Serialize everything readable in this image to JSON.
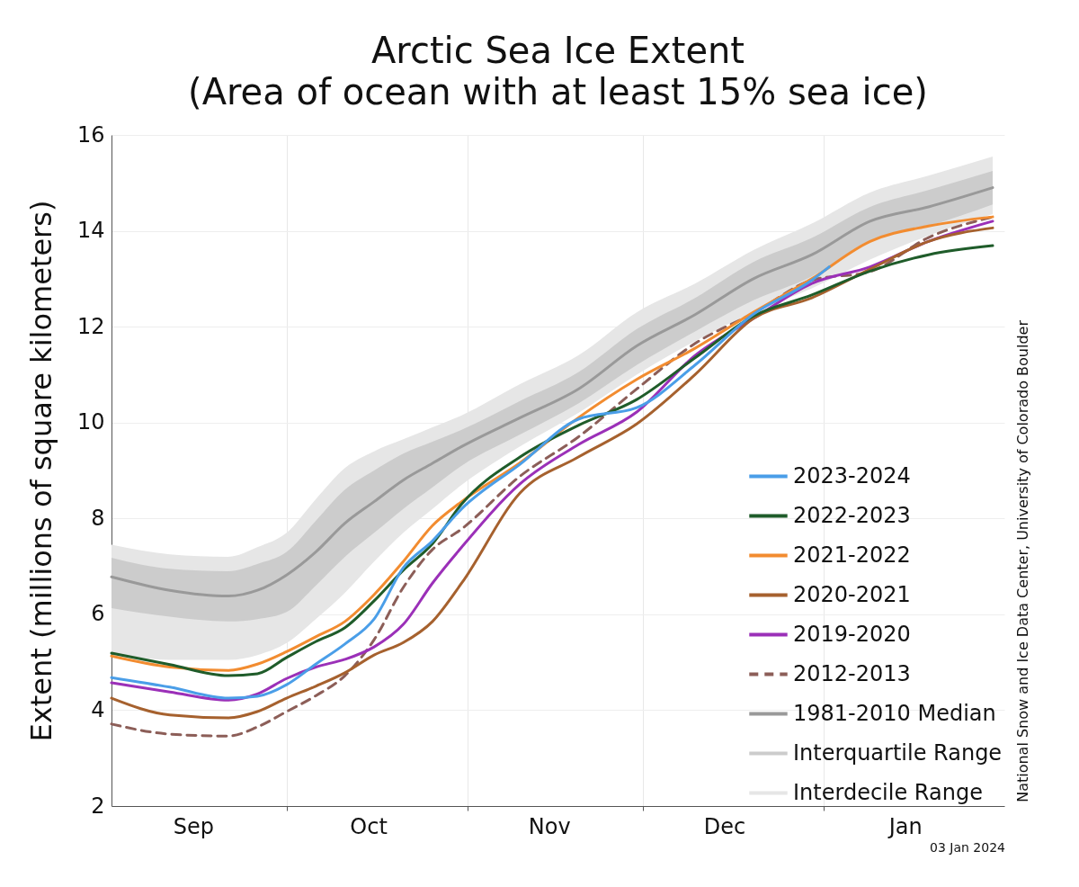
{
  "chart_data": {
    "type": "line",
    "title": "Arctic Sea Ice Extent",
    "subtitle": "(Area of ocean with at least 15% sea ice)",
    "ylabel": "Extent (millions of square kilometers)",
    "x": [
      "2023-09-01",
      "2023-09-11",
      "2023-09-21",
      "2023-09-26",
      "2023-10-01",
      "2023-10-06",
      "2023-10-11",
      "2023-10-16",
      "2023-10-21",
      "2023-10-26",
      "2023-10-31",
      "2023-11-10",
      "2023-11-20",
      "2023-11-30",
      "2023-12-10",
      "2023-12-20",
      "2023-12-30",
      "2024-01-09",
      "2024-01-19",
      "2024-01-30"
    ],
    "xlim": [
      "2023-09-01",
      "2024-02-01"
    ],
    "xticks": [
      {
        "value": "2023-09-15",
        "label": "Sep"
      },
      {
        "value": "2023-10-01",
        "label": null
      },
      {
        "value": "2023-10-15",
        "label": "Oct"
      },
      {
        "value": "2023-11-01",
        "label": null
      },
      {
        "value": "2023-11-15",
        "label": "Nov"
      },
      {
        "value": "2023-12-01",
        "label": null
      },
      {
        "value": "2023-12-15",
        "label": "Dec"
      },
      {
        "value": "2024-01-01",
        "label": null
      },
      {
        "value": "2024-01-15",
        "label": "Jan"
      }
    ],
    "ylim": [
      2,
      16
    ],
    "yticks": [
      2,
      4,
      6,
      8,
      10,
      12,
      14,
      16
    ],
    "grid": true,
    "legend": "bottom right",
    "series": [
      {
        "name": "2023-2024",
        "color": "#4a9ee8",
        "x": [
          "2023-09-01",
          "2023-09-11",
          "2023-09-21",
          "2023-09-26",
          "2023-10-01",
          "2023-10-06",
          "2023-10-11",
          "2023-10-16",
          "2023-10-21",
          "2023-10-26",
          "2023-10-31",
          "2023-11-10",
          "2023-11-20",
          "2023-11-30",
          "2023-12-10",
          "2023-12-20",
          "2023-12-30",
          "2024-01-02"
        ],
        "values": [
          4.68,
          4.48,
          4.25,
          4.29,
          4.53,
          4.96,
          5.38,
          5.9,
          6.97,
          7.53,
          8.2,
          9.13,
          10.07,
          10.31,
          11.2,
          12.26,
          12.97,
          13.25
        ]
      },
      {
        "name": "2022-2023",
        "color": "#1f5c2a",
        "values": [
          5.19,
          4.95,
          4.72,
          4.76,
          5.1,
          5.43,
          5.72,
          6.28,
          6.92,
          7.47,
          8.3,
          9.28,
          9.94,
          10.48,
          11.35,
          12.22,
          12.66,
          13.16,
          13.5,
          13.69
        ]
      },
      {
        "name": "2021-2022",
        "color": "#f28c30",
        "values": [
          5.13,
          4.9,
          4.83,
          4.96,
          5.22,
          5.53,
          5.85,
          6.41,
          7.1,
          7.85,
          8.35,
          9.16,
          10.1,
          10.9,
          11.55,
          12.3,
          13.0,
          13.78,
          14.1,
          14.29
        ]
      },
      {
        "name": "2020-2021",
        "color": "#a6612e",
        "values": [
          4.25,
          3.9,
          3.84,
          3.97,
          4.25,
          4.5,
          4.78,
          5.15,
          5.41,
          5.85,
          6.65,
          8.53,
          9.28,
          9.97,
          11.0,
          12.17,
          12.6,
          13.2,
          13.78,
          14.06
        ]
      },
      {
        "name": "2019-2020",
        "color": "#9b30b8",
        "values": [
          4.57,
          4.38,
          4.21,
          4.34,
          4.66,
          4.9,
          5.06,
          5.32,
          5.79,
          6.65,
          7.4,
          8.72,
          9.54,
          10.22,
          11.4,
          12.17,
          12.9,
          13.25,
          13.78,
          14.2
        ]
      },
      {
        "name": "2012-2013",
        "color": "#8c5e58",
        "line_style": "dashed",
        "values": [
          3.71,
          3.5,
          3.46,
          3.65,
          3.97,
          4.3,
          4.72,
          5.47,
          6.56,
          7.35,
          7.78,
          8.88,
          9.7,
          10.7,
          11.65,
          12.28,
          12.97,
          13.15,
          13.86,
          14.29
        ]
      },
      {
        "name": "1981-2010 Median",
        "color": "#999999",
        "values": [
          6.78,
          6.5,
          6.38,
          6.5,
          6.82,
          7.3,
          7.9,
          8.35,
          8.8,
          9.15,
          9.5,
          10.1,
          10.7,
          11.6,
          12.25,
          13.0,
          13.5,
          14.2,
          14.5,
          14.9
        ]
      },
      {
        "name": "Interquartile Range",
        "type": "area",
        "color": "#cccccc",
        "values": [
          null,
          null,
          null,
          null,
          null,
          null,
          null,
          null,
          null,
          null,
          null,
          null,
          null,
          null,
          null,
          null,
          null,
          null,
          null,
          null
        ],
        "lower": [
          6.13,
          5.95,
          5.85,
          5.9,
          6.05,
          6.6,
          7.2,
          7.7,
          8.2,
          8.65,
          9.1,
          9.75,
          10.4,
          11.2,
          11.9,
          12.55,
          13.05,
          13.8,
          14.1,
          14.55
        ],
        "upper": [
          7.18,
          6.95,
          6.9,
          7.05,
          7.3,
          7.95,
          8.6,
          9.0,
          9.35,
          9.6,
          9.85,
          10.45,
          11.05,
          11.95,
          12.6,
          13.35,
          13.85,
          14.5,
          14.85,
          15.25
        ]
      },
      {
        "name": "Interdecile Range",
        "type": "area",
        "color": "#e6e6e6",
        "values": [
          null,
          null,
          null,
          null,
          null,
          null,
          null,
          null,
          null,
          null,
          null,
          null,
          null,
          null,
          null,
          null,
          null,
          null,
          null,
          null
        ],
        "lower": [
          5.2,
          5.05,
          5.05,
          5.15,
          5.4,
          5.9,
          6.45,
          7.1,
          7.7,
          8.2,
          8.7,
          9.5,
          10.2,
          11.0,
          11.7,
          12.3,
          12.8,
          13.4,
          13.9,
          14.35
        ],
        "upper": [
          7.45,
          7.25,
          7.2,
          7.4,
          7.7,
          8.4,
          9.05,
          9.4,
          9.65,
          9.9,
          10.15,
          10.8,
          11.4,
          12.3,
          12.9,
          13.6,
          14.15,
          14.8,
          15.15,
          15.55
        ]
      }
    ],
    "annotations": [
      "National Snow and Ice Data Center, University of Colorado Boulder",
      "03 Jan 2024"
    ]
  }
}
